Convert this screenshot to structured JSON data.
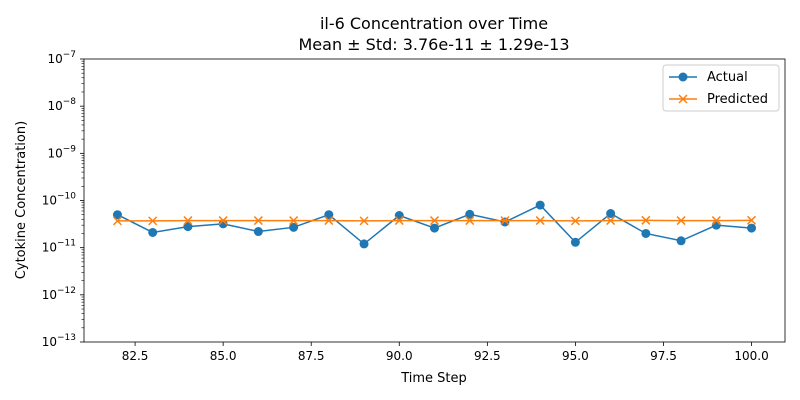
{
  "chart_data": {
    "type": "line",
    "title": "il-6 Concentration over Time",
    "subtitle": "Mean ± Std: 3.76e-11 ± 1.29e-13",
    "xlabel": "Time Step",
    "ylabel": "Cytokine Concentration)",
    "yscale": "log",
    "xlim": [
      81.05,
      100.95
    ],
    "ylim": [
      1e-13,
      1e-07
    ],
    "x_ticks": [
      82.5,
      85.0,
      87.5,
      90.0,
      92.5,
      95.0,
      97.5,
      100.0
    ],
    "x_tick_labels": [
      "82.5",
      "85.0",
      "87.5",
      "90.0",
      "92.5",
      "95.0",
      "97.5",
      "100.0"
    ],
    "y_ticks": [
      1e-13,
      1e-12,
      1e-11,
      1e-10,
      1e-09,
      1e-08,
      1e-07
    ],
    "y_tick_labels": [
      {
        "base": "10",
        "exp": "−13"
      },
      {
        "base": "10",
        "exp": "−12"
      },
      {
        "base": "10",
        "exp": "−11"
      },
      {
        "base": "10",
        "exp": "−10"
      },
      {
        "base": "10",
        "exp": "−9"
      },
      {
        "base": "10",
        "exp": "−8"
      },
      {
        "base": "10",
        "exp": "−7"
      }
    ],
    "grid": false,
    "legend_position": "top-right",
    "x": [
      82,
      83,
      84,
      85,
      86,
      87,
      88,
      89,
      90,
      91,
      92,
      93,
      94,
      95,
      96,
      97,
      98,
      99,
      100
    ],
    "series": [
      {
        "name": "Actual",
        "color": "#1f77b4",
        "marker": "circle",
        "values": [
          5e-11,
          2.1e-11,
          2.8e-11,
          3.2e-11,
          2.2e-11,
          2.7e-11,
          5e-11,
          1.2e-11,
          4.8e-11,
          2.6e-11,
          5.1e-11,
          3.5e-11,
          8e-11,
          1.3e-11,
          5.3e-11,
          2e-11,
          1.4e-11,
          3e-11,
          2.6e-11
        ]
      },
      {
        "name": "Predicted",
        "color": "#ff7f0e",
        "marker": "x",
        "values": [
          3.7e-11,
          3.7e-11,
          3.75e-11,
          3.75e-11,
          3.75e-11,
          3.75e-11,
          3.75e-11,
          3.7e-11,
          3.75e-11,
          3.75e-11,
          3.75e-11,
          3.75e-11,
          3.75e-11,
          3.7e-11,
          3.75e-11,
          3.8e-11,
          3.75e-11,
          3.75e-11,
          3.8e-11
        ]
      }
    ]
  }
}
